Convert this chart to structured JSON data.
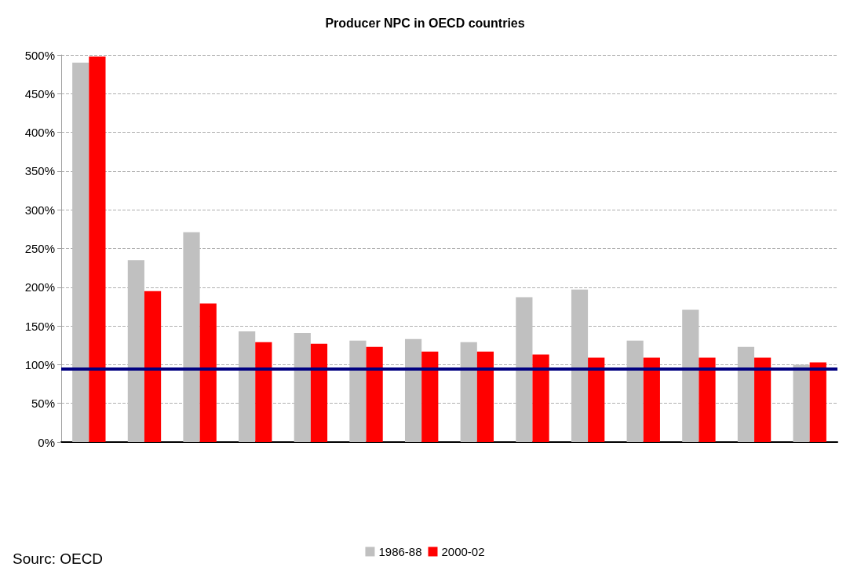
{
  "chart_data": {
    "type": "bar",
    "title": "Producer NPC in OECD countries",
    "categories": [
      null,
      null,
      null,
      null,
      null,
      null,
      null,
      null,
      null,
      null,
      null,
      null,
      null,
      null
    ],
    "series": [
      {
        "name": "1986-88",
        "color": "#c0c0c0",
        "values": [
          490,
          235,
          271,
          143,
          141,
          131,
          133,
          129,
          187,
          197,
          131,
          171,
          123,
          100
        ]
      },
      {
        "name": "2000-02",
        "color": "#ff0000",
        "values": [
          498,
          195,
          179,
          129,
          127,
          123,
          117,
          117,
          113,
          109,
          109,
          109,
          109,
          103
        ]
      }
    ],
    "ylim": [
      0,
      500
    ],
    "yticks": [
      {
        "value": 0,
        "label": "0%"
      },
      {
        "value": 50,
        "label": "50%"
      },
      {
        "value": 100,
        "label": "100%"
      },
      {
        "value": 150,
        "label": "150%"
      },
      {
        "value": 200,
        "label": "200%"
      },
      {
        "value": 250,
        "label": "250%"
      },
      {
        "value": 300,
        "label": "300%"
      },
      {
        "value": 350,
        "label": "350%"
      },
      {
        "value": 400,
        "label": "400%"
      },
      {
        "value": 450,
        "label": "450%"
      },
      {
        "value": 500,
        "label": "500%"
      }
    ],
    "ref_lines": [
      {
        "axis": "y",
        "value": 95,
        "color": "#000080"
      }
    ],
    "grid": "y",
    "legend": "bottom",
    "tick_labels": "y",
    "annotations": [
      "Sourc: OECD"
    ]
  }
}
